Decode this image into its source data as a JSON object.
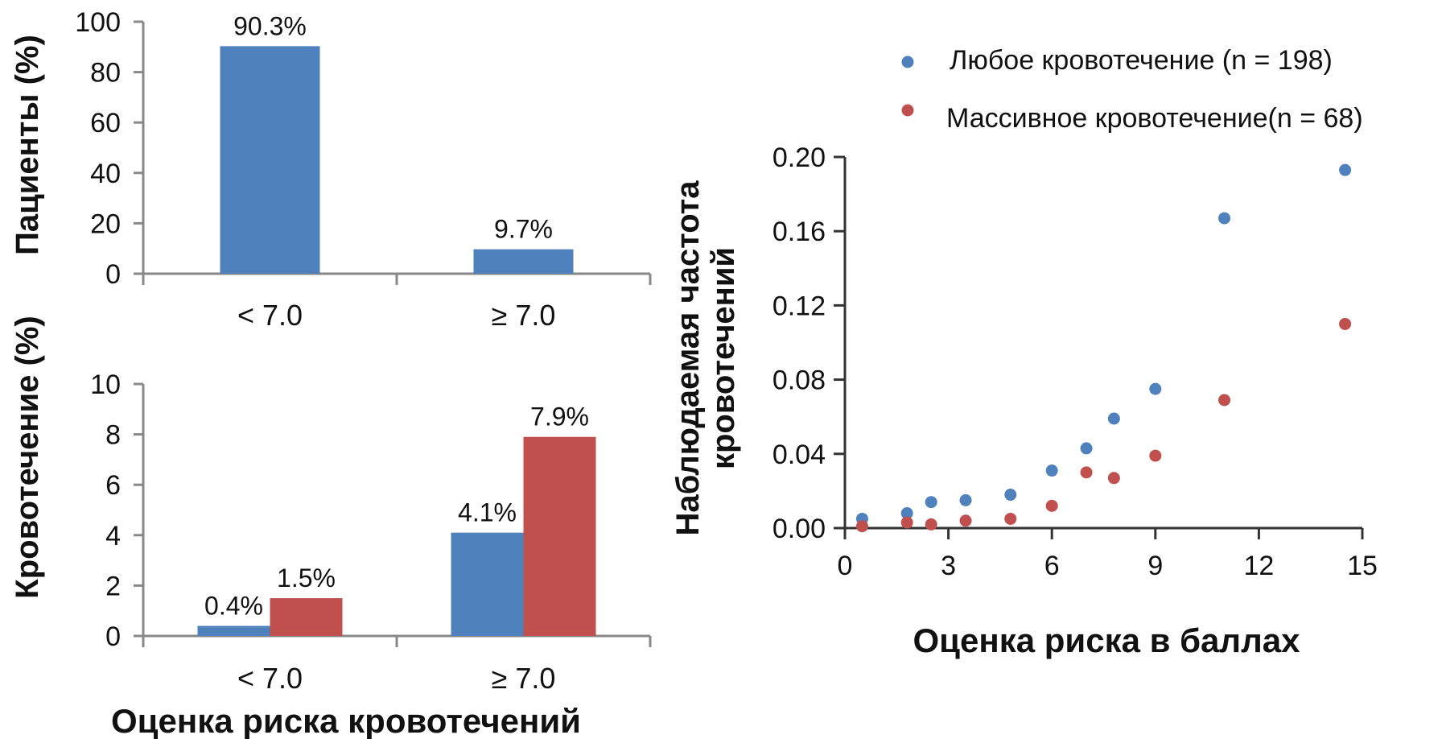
{
  "colors": {
    "blue": "#4F81BD",
    "red": "#C0504D"
  },
  "chart_data": [
    {
      "type": "bar",
      "ylabel": "Пациенты (%)",
      "xlabel": "",
      "ylim": [
        0,
        100
      ],
      "yticks": [
        "0",
        "20",
        "40",
        "60",
        "80",
        "100"
      ],
      "categories": [
        "< 7.0",
        "≥ 7.0"
      ],
      "series": [
        {
          "color": "#4F81BD",
          "values": [
            90.3,
            9.7
          ],
          "labels": [
            "90.3%",
            "9.7%"
          ]
        }
      ]
    },
    {
      "type": "bar",
      "ylabel": "Кровотечение (%)",
      "xlabel": "Оценка риска кровотечений",
      "ylim": [
        0,
        10
      ],
      "yticks": [
        "0",
        "2",
        "4",
        "6",
        "8",
        "10"
      ],
      "categories": [
        "< 7.0",
        "≥ 7.0"
      ],
      "series": [
        {
          "color": "#4F81BD",
          "values": [
            0.4,
            4.1
          ],
          "labels": [
            "0.4%",
            "4.1%"
          ]
        },
        {
          "color": "#C0504D",
          "values": [
            1.5,
            7.9
          ],
          "labels": [
            "1.5%",
            "7.9%"
          ]
        }
      ]
    },
    {
      "type": "scatter",
      "ylabel_line1": "Наблюдаемая частота",
      "ylabel_line2": "кровотечений",
      "xlabel": "Оценка риска в баллах",
      "xlim": [
        0,
        15
      ],
      "ylim": [
        0,
        0.2
      ],
      "xticks": [
        "0",
        "3",
        "6",
        "9",
        "12",
        "15"
      ],
      "yticks": [
        "0.00",
        "0.04",
        "0.08",
        "0.12",
        "0.16",
        "0.20"
      ],
      "legend_position": "top-right",
      "series": [
        {
          "name": "Любое кровотечение (n = 198)",
          "color": "#4F81BD",
          "points": [
            [
              0.5,
              0.005
            ],
            [
              1.8,
              0.008
            ],
            [
              2.5,
              0.014
            ],
            [
              3.5,
              0.015
            ],
            [
              4.8,
              0.018
            ],
            [
              6.0,
              0.031
            ],
            [
              7.0,
              0.043
            ],
            [
              7.8,
              0.059
            ],
            [
              9.0,
              0.075
            ],
            [
              11.0,
              0.167
            ],
            [
              14.5,
              0.193
            ]
          ]
        },
        {
          "name": "Массивное кровотечение(n = 68)",
          "color": "#C0504D",
          "points": [
            [
              0.5,
              0.001
            ],
            [
              1.8,
              0.003
            ],
            [
              2.5,
              0.002
            ],
            [
              3.5,
              0.004
            ],
            [
              4.8,
              0.005
            ],
            [
              6.0,
              0.012
            ],
            [
              7.0,
              0.03
            ],
            [
              7.8,
              0.027
            ],
            [
              9.0,
              0.039
            ],
            [
              11.0,
              0.069
            ],
            [
              14.5,
              0.11
            ]
          ]
        }
      ]
    }
  ]
}
